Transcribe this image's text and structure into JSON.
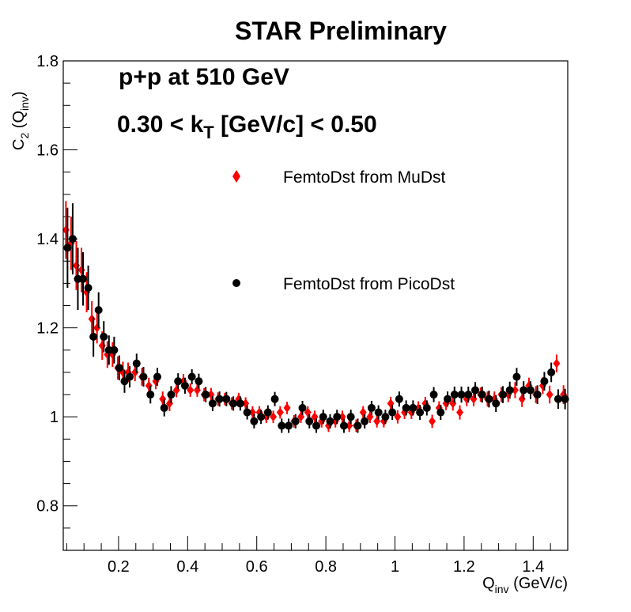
{
  "chart_data": {
    "type": "scatter",
    "title": "STAR Preliminary",
    "annotations": {
      "system": "p+p at 510 GeV",
      "kt_prefix": "0.30 < k",
      "kt_sub": "T",
      "kt_suffix": " [GeV/c] < 0.50"
    },
    "ylabel": {
      "main": "C",
      "sub": "2",
      "open": " (Q",
      "sub2": "inv",
      "close": ")"
    },
    "xlabel": {
      "main": "Q",
      "sub": "inv",
      "rest": " (GeV/c)"
    },
    "xlim": [
      0.04,
      1.5
    ],
    "ylim": [
      0.7,
      1.8
    ],
    "xticks": [
      {
        "v": 0.2,
        "t": "0.2"
      },
      {
        "v": 0.4,
        "t": "0.4"
      },
      {
        "v": 0.6,
        "t": "0.6"
      },
      {
        "v": 0.8,
        "t": "0.8"
      },
      {
        "v": 1.0,
        "t": "1"
      },
      {
        "v": 1.2,
        "t": "1.2"
      },
      {
        "v": 1.4,
        "t": "1.4"
      }
    ],
    "yticks": [
      {
        "v": 0.8,
        "t": "0.8"
      },
      {
        "v": 1.0,
        "t": "1"
      },
      {
        "v": 1.2,
        "t": "1.2"
      },
      {
        "v": 1.4,
        "t": "1.4"
      },
      {
        "v": 1.6,
        "t": "1.6"
      },
      {
        "v": 1.8,
        "t": "1.8"
      }
    ],
    "legend_placement": "upper-right",
    "x": [
      0.05,
      0.065,
      0.08,
      0.095,
      0.11,
      0.125,
      0.14,
      0.155,
      0.17,
      0.185,
      0.2,
      0.215,
      0.23,
      0.25,
      0.27,
      0.29,
      0.31,
      0.33,
      0.35,
      0.37,
      0.39,
      0.41,
      0.43,
      0.45,
      0.47,
      0.49,
      0.51,
      0.53,
      0.55,
      0.57,
      0.59,
      0.61,
      0.63,
      0.65,
      0.67,
      0.69,
      0.71,
      0.73,
      0.75,
      0.77,
      0.79,
      0.81,
      0.83,
      0.85,
      0.87,
      0.89,
      0.91,
      0.93,
      0.95,
      0.97,
      0.99,
      1.01,
      1.03,
      1.05,
      1.07,
      1.09,
      1.11,
      1.13,
      1.15,
      1.17,
      1.19,
      1.21,
      1.23,
      1.25,
      1.27,
      1.29,
      1.31,
      1.33,
      1.35,
      1.37,
      1.39,
      1.41,
      1.43,
      1.45,
      1.47,
      1.49
    ],
    "series": [
      {
        "name": "FemtoDst from MuDst",
        "color": "#ff0000",
        "marker": "diamond",
        "values": [
          1.42,
          1.39,
          1.34,
          1.33,
          1.28,
          1.22,
          1.2,
          1.16,
          1.14,
          1.14,
          1.11,
          1.1,
          1.1,
          1.1,
          1.09,
          1.07,
          1.08,
          1.04,
          1.03,
          1.06,
          1.08,
          1.06,
          1.06,
          1.05,
          1.05,
          1.04,
          1.04,
          1.03,
          1.04,
          1.03,
          1.01,
          1.01,
          1.0,
          1.0,
          1.01,
          1.02,
          0.99,
          1.0,
          1.01,
          1.0,
          0.99,
          0.98,
          0.99,
          1.0,
          0.98,
          0.98,
          1.01,
          1.0,
          0.99,
          0.99,
          1.03,
          1.0,
          1.01,
          1.01,
          1.02,
          1.03,
          0.99,
          1.02,
          1.03,
          1.03,
          1.01,
          1.04,
          1.04,
          1.05,
          1.04,
          1.04,
          1.05,
          1.05,
          1.06,
          1.04,
          1.07,
          1.05,
          1.07,
          1.05,
          1.12,
          1.05
        ],
        "errors": [
          0.065,
          0.06,
          0.055,
          0.05,
          0.045,
          0.04,
          0.035,
          0.032,
          0.03,
          0.028,
          0.026,
          0.024,
          0.022,
          0.02,
          0.02,
          0.018,
          0.018,
          0.017,
          0.017,
          0.016,
          0.016,
          0.015,
          0.015,
          0.015,
          0.015,
          0.015,
          0.014,
          0.014,
          0.014,
          0.014,
          0.014,
          0.014,
          0.014,
          0.014,
          0.014,
          0.014,
          0.014,
          0.014,
          0.014,
          0.014,
          0.014,
          0.014,
          0.014,
          0.014,
          0.014,
          0.014,
          0.014,
          0.014,
          0.014,
          0.014,
          0.015,
          0.015,
          0.015,
          0.015,
          0.015,
          0.015,
          0.015,
          0.015,
          0.015,
          0.016,
          0.016,
          0.016,
          0.016,
          0.016,
          0.017,
          0.017,
          0.017,
          0.017,
          0.018,
          0.018,
          0.018,
          0.019,
          0.019,
          0.02,
          0.02,
          0.021
        ]
      },
      {
        "name": "FemtoDst from PicoDst",
        "color": "#000000",
        "marker": "circle",
        "values": [
          1.38,
          1.4,
          1.31,
          1.31,
          1.29,
          1.18,
          1.24,
          1.18,
          1.15,
          1.15,
          1.11,
          1.08,
          1.09,
          1.12,
          1.09,
          1.05,
          1.09,
          1.02,
          1.05,
          1.08,
          1.07,
          1.09,
          1.08,
          1.05,
          1.03,
          1.04,
          1.04,
          1.03,
          1.03,
          1.01,
          0.99,
          1.0,
          1.01,
          1.04,
          0.98,
          0.98,
          0.99,
          1.02,
          0.99,
          0.98,
          1.0,
          0.99,
          1.0,
          0.98,
          1.0,
          0.98,
          0.99,
          1.02,
          1.01,
          1.0,
          1.01,
          1.04,
          1.02,
          1.02,
          1.01,
          1.02,
          1.05,
          1.01,
          1.04,
          1.05,
          1.05,
          1.05,
          1.06,
          1.05,
          1.04,
          1.03,
          1.05,
          1.06,
          1.09,
          1.06,
          1.06,
          1.05,
          1.08,
          1.1,
          1.04,
          1.04
        ],
        "errors": [
          0.09,
          0.08,
          0.07,
          0.06,
          0.05,
          0.045,
          0.04,
          0.035,
          0.033,
          0.03,
          0.028,
          0.026,
          0.024,
          0.022,
          0.022,
          0.02,
          0.02,
          0.019,
          0.019,
          0.018,
          0.018,
          0.017,
          0.017,
          0.017,
          0.017,
          0.017,
          0.016,
          0.016,
          0.016,
          0.016,
          0.016,
          0.016,
          0.016,
          0.016,
          0.016,
          0.016,
          0.016,
          0.016,
          0.016,
          0.016,
          0.016,
          0.016,
          0.016,
          0.016,
          0.016,
          0.016,
          0.016,
          0.016,
          0.016,
          0.016,
          0.017,
          0.017,
          0.017,
          0.017,
          0.017,
          0.017,
          0.017,
          0.017,
          0.017,
          0.018,
          0.018,
          0.018,
          0.018,
          0.018,
          0.019,
          0.019,
          0.019,
          0.019,
          0.02,
          0.02,
          0.02,
          0.021,
          0.021,
          0.022,
          0.022,
          0.023
        ]
      }
    ]
  }
}
